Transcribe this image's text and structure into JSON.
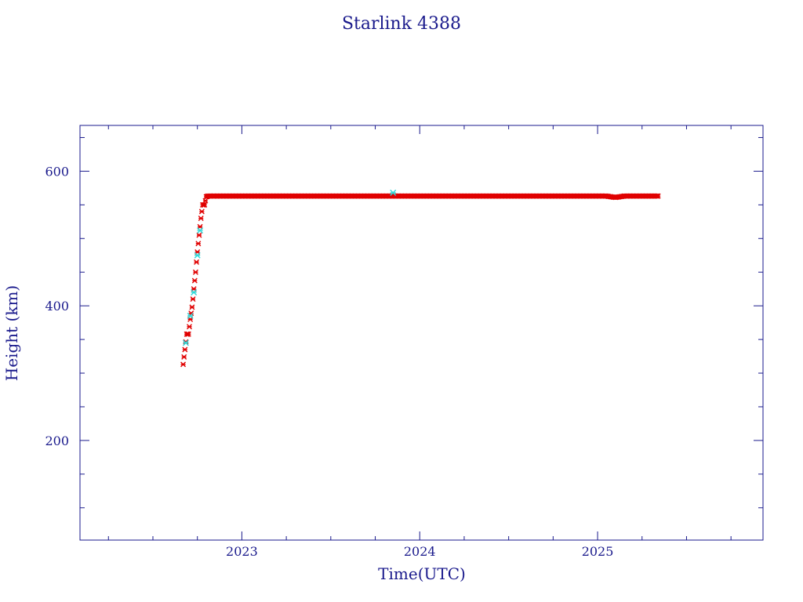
{
  "chart_data": {
    "type": "scatter",
    "title": "Starlink 4388",
    "xlabel": "Time(UTC)",
    "ylabel": "Height (km)",
    "xlim": [
      2022.09,
      2025.93
    ],
    "ylim": [
      52,
      668
    ],
    "x_ticks": [
      2023,
      2024,
      2025
    ],
    "y_ticks": [
      200,
      400,
      600
    ],
    "grid": false,
    "colors": {
      "frame": "#1a1a8c",
      "primary": "#e00000",
      "secondary": "#30d8d8"
    },
    "series": [
      {
        "color": "#e00000",
        "x": [
          2022.67,
          2022.68,
          2022.69,
          2022.7,
          2022.71,
          2022.72,
          2022.725,
          2022.73,
          2022.74,
          2022.75,
          2022.76,
          2022.77,
          2022.78,
          2022.79,
          2022.8,
          2022.81,
          2022.85,
          2022.95,
          2023.05,
          2023.15,
          2023.25,
          2023.35,
          2023.45,
          2023.55,
          2023.65,
          2023.75,
          2023.85,
          2023.95,
          2024.05,
          2024.15,
          2024.25,
          2024.35,
          2024.45,
          2024.55,
          2024.65,
          2024.75,
          2024.85,
          2024.95,
          2025.05,
          2025.1,
          2025.15,
          2025.25,
          2025.34
        ],
        "y": [
          313,
          335,
          358,
          358,
          380,
          398,
          410,
          425,
          450,
          480,
          505,
          530,
          550,
          550,
          562,
          563,
          563,
          563,
          563,
          563,
          563,
          563,
          563,
          563,
          563,
          563,
          563,
          563,
          563,
          563,
          563,
          563,
          563,
          563,
          563,
          563,
          563,
          563,
          563,
          561,
          563,
          563,
          563
        ]
      },
      {
        "color": "#30d8d8",
        "x": [
          2022.685,
          2022.71,
          2022.73,
          2022.75,
          2022.765,
          2023.85
        ],
        "y": [
          345,
          385,
          420,
          475,
          512,
          568
        ]
      }
    ]
  }
}
